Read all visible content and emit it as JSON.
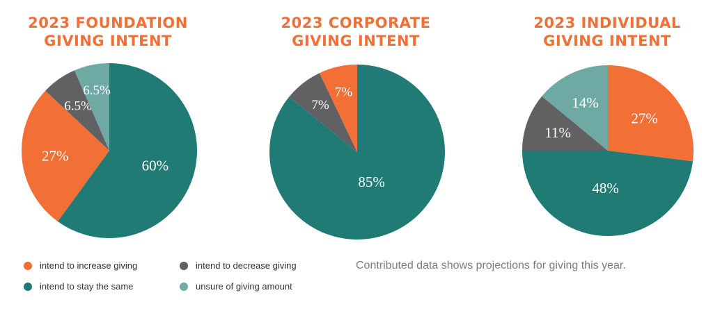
{
  "colors": {
    "increase": "#f26f35",
    "same": "#1f7b73",
    "decrease": "#616163",
    "unsure": "#6ea9a3",
    "title": "#f26f35"
  },
  "legend": [
    {
      "key": "increase",
      "label": "intend to increase giving"
    },
    {
      "key": "decrease",
      "label": "intend to decrease giving"
    },
    {
      "key": "same",
      "label": "intend to stay the same"
    },
    {
      "key": "unsure",
      "label": "unsure of giving amount"
    }
  ],
  "footnote": "Contributed data shows projections for giving this year.",
  "chart_data": [
    {
      "type": "pie",
      "title_line1": "2023 FOUNDATION",
      "title_line2": "GIVING INTENT",
      "slices": [
        {
          "key": "same",
          "value": 60,
          "label": "60%"
        },
        {
          "key": "increase",
          "value": 27,
          "label": "27%"
        },
        {
          "key": "decrease",
          "value": 6.5,
          "label": "6.5%"
        },
        {
          "key": "unsure",
          "value": 6.5,
          "label": "6.5%"
        }
      ]
    },
    {
      "type": "pie",
      "title_line1": "2023 CORPORATE",
      "title_line2": "GIVING INTENT",
      "slices": [
        {
          "key": "same",
          "value": 85,
          "label": "85%"
        },
        {
          "key": "decrease",
          "value": 7,
          "label": "7%"
        },
        {
          "key": "increase",
          "value": 7,
          "label": "7%"
        }
      ]
    },
    {
      "type": "pie",
      "title_line1": "2023 INDIVIDUAL",
      "title_line2": "GIVING INTENT",
      "slices": [
        {
          "key": "increase",
          "value": 27,
          "label": "27%"
        },
        {
          "key": "same",
          "value": 48,
          "label": "48%"
        },
        {
          "key": "decrease",
          "value": 11,
          "label": "11%"
        },
        {
          "key": "unsure",
          "value": 14,
          "label": "14%"
        }
      ]
    }
  ]
}
